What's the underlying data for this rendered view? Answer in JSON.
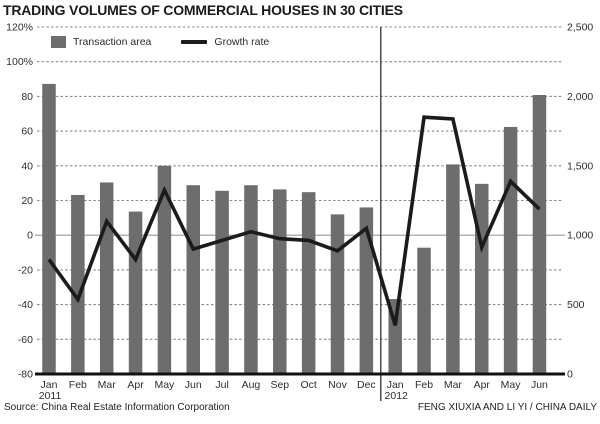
{
  "title": "TRADING VOLUMES OF COMMERCIAL HOUSES IN 30 CITIES",
  "legend": {
    "bar_label": "Transaction area",
    "line_label": "Growth rate"
  },
  "footer": {
    "source": "Source: China Real Estate Information Corporation",
    "credit": "FENG XIUXIA AND LI YI / CHINA DAILY"
  },
  "colors": {
    "bar": "#6d6d6d",
    "line": "#1b1b1b",
    "grid_dashed": "#8a8a8a",
    "grid_zero": "#9a9a9a",
    "axis_line": "#111111",
    "divider": "#3f3f3f",
    "tick_text": "#2e2e2e",
    "background": "#ffffff"
  },
  "chart_data": {
    "type": "bar",
    "subtype": "combo-bar-line-dual-axis",
    "categories": [
      "Jan",
      "Feb",
      "Mar",
      "Apr",
      "May",
      "Jun",
      "Jul",
      "Aug",
      "Sep",
      "Oct",
      "Nov",
      "Dec",
      "Jan",
      "Feb",
      "Mar",
      "Apr",
      "May",
      "Jun"
    ],
    "category_year_labels": [
      {
        "index": 0,
        "label": "2011"
      },
      {
        "index": 12,
        "label": "2012"
      }
    ],
    "series": [
      {
        "name": "Transaction area",
        "type": "bar",
        "axis": "right",
        "values": [
          2090,
          1290,
          1380,
          1170,
          1500,
          1360,
          1320,
          1360,
          1330,
          1310,
          1150,
          1200,
          540,
          910,
          1510,
          1370,
          1780,
          2010
        ]
      },
      {
        "name": "Growth rate",
        "type": "line",
        "axis": "left",
        "values": [
          -14,
          -37,
          8,
          -14,
          26,
          -8,
          -3,
          2,
          -2,
          -3,
          -9,
          4,
          -52,
          68,
          67,
          -7,
          31,
          15
        ]
      }
    ],
    "left_axis": {
      "unit": "%",
      "min": -80,
      "max": 120,
      "step": 20,
      "tick_labels": [
        "120%",
        "100%",
        "80",
        "60",
        "40",
        "20",
        "0",
        "-20",
        "-40",
        "-60",
        "-80"
      ]
    },
    "right_axis": {
      "min": 0,
      "max": 2500,
      "step": 500,
      "tick_labels": [
        "2,500",
        "2,000",
        "1,500",
        "1,000",
        "500",
        "0"
      ]
    },
    "year_divider_after_index": 11,
    "grid": "horizontal dashed every 20% (250 units), solid line at 0% / 1,000"
  }
}
